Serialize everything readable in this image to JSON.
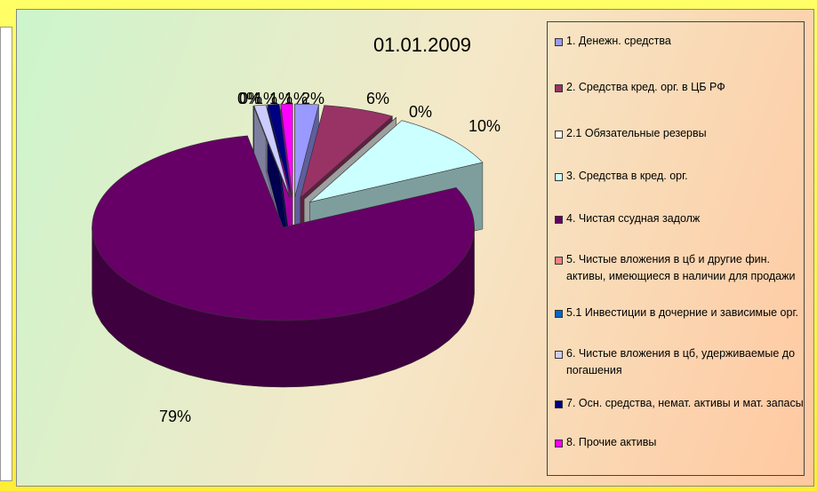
{
  "chart_data": {
    "type": "pie",
    "title": "01.01.2009",
    "categories": [
      "1. Денежн. средства",
      "2. Средства кред. орг. в ЦБ РФ",
      "2.1 Обязательные резервы",
      "3. Средства в кред. орг.",
      "4. Чистая ссудная задолж",
      "5. Чистые вложения в цб и другие фин. активы, имеющиеся в наличии для продажи",
      "5.1 Инвестиции в дочерние и зависимые орг.",
      "6. Чистые вложения в цб, удерживаемые до погашения",
      "7. Осн. средства, немат. активы и мат. запасы",
      "8. Прочие активы"
    ],
    "values": [
      2,
      6,
      0,
      10,
      79,
      0,
      0,
      1,
      1,
      1
    ],
    "colors": [
      "#9999ff",
      "#993366",
      "#ffffff",
      "#ccffff",
      "#660066",
      "#ff8080",
      "#0066cc",
      "#ccccff",
      "#000080",
      "#ff00ff"
    ]
  }
}
